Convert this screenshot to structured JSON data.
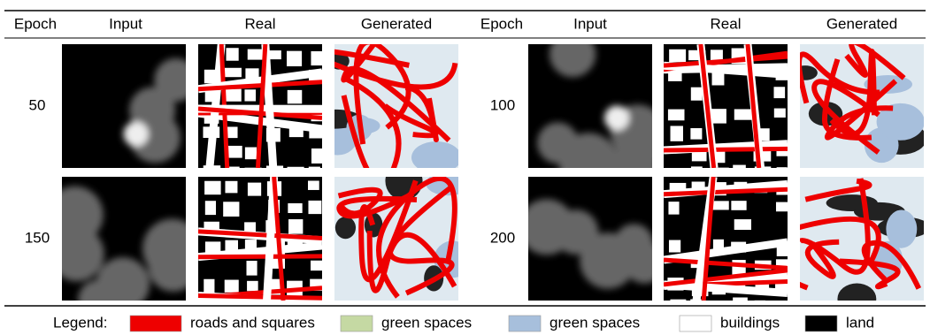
{
  "header": {
    "columns": [
      "Epoch",
      "Input",
      "Real",
      "Generated",
      "Epoch",
      "Input",
      "Real",
      "Generated"
    ]
  },
  "rows": [
    {
      "epoch": "50"
    },
    {
      "epoch": "100"
    },
    {
      "epoch": "150"
    },
    {
      "epoch": "200"
    }
  ],
  "legend": {
    "label": "Legend:",
    "items": [
      {
        "text": "roads and squares",
        "color": "#ee0000"
      },
      {
        "text": "green spaces",
        "color": "#c5d9a3"
      },
      {
        "text": "green spaces",
        "color": "#a7bfdc"
      },
      {
        "text": "buildings",
        "color": "#ffffff"
      },
      {
        "text": "land",
        "color": "#000000"
      }
    ]
  }
}
